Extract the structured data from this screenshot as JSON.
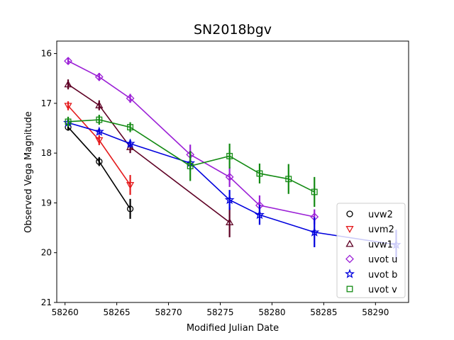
{
  "chart_data": {
    "type": "scatter",
    "title": "SN2018bgv",
    "xlabel": "Modified Julian Date",
    "ylabel": "Observed Vega Magnitude",
    "xlim": [
      58259.2,
      58293.2
    ],
    "ylim": [
      21.0,
      15.75
    ],
    "y_inverted": true,
    "xticks": [
      58260,
      58265,
      58270,
      58275,
      58280,
      58285,
      58290
    ],
    "yticks": [
      16,
      17,
      18,
      19,
      20,
      21
    ],
    "grid": false,
    "legend_position": "lower right",
    "series": [
      {
        "name": "uvw2",
        "color": "#000000",
        "marker": "circle",
        "x": [
          58260.3,
          58263.3,
          58266.3
        ],
        "y": [
          17.48,
          18.17,
          19.12
        ],
        "yerr": [
          0.07,
          0.09,
          0.2
        ]
      },
      {
        "name": "uvm2",
        "color": "#e41a1c",
        "marker": "triangle-down",
        "x": [
          58260.3,
          58263.3,
          58266.3
        ],
        "y": [
          17.05,
          17.74,
          18.64
        ],
        "yerr": [
          0.09,
          0.1,
          0.2
        ]
      },
      {
        "name": "uvw1",
        "color": "#5e0024",
        "marker": "triangle-up",
        "x": [
          58260.3,
          58263.3,
          58266.3,
          58275.9
        ],
        "y": [
          16.62,
          17.04,
          17.88,
          19.39
        ],
        "yerr": [
          0.1,
          0.1,
          0.12,
          0.3
        ]
      },
      {
        "name": "uvot u",
        "color": "#9b1fd6",
        "marker": "diamond",
        "x": [
          58260.3,
          58263.3,
          58266.3,
          58272.1,
          58275.9,
          58278.8,
          58284.1
        ],
        "y": [
          16.15,
          16.47,
          16.9,
          18.03,
          18.48,
          19.05,
          19.28
        ],
        "yerr": [
          0.07,
          0.08,
          0.09,
          0.2,
          0.2,
          0.2,
          0.15
        ]
      },
      {
        "name": "uvot b",
        "color": "#0000dd",
        "marker": "star",
        "x": [
          58260.3,
          58263.3,
          58266.3,
          58272.1,
          58275.9,
          58278.8,
          58284.1,
          58292.0
        ],
        "y": [
          17.39,
          17.57,
          17.81,
          18.2,
          18.94,
          19.24,
          19.59,
          19.84
        ],
        "yerr": [
          0.05,
          0.06,
          0.08,
          0.15,
          0.2,
          0.2,
          0.3,
          0.3
        ]
      },
      {
        "name": "uvot v",
        "color": "#138a13",
        "marker": "square",
        "x": [
          58260.3,
          58263.3,
          58266.3,
          58272.1,
          58275.9,
          58278.8,
          58281.6,
          58284.1
        ],
        "y": [
          17.37,
          17.33,
          17.48,
          18.26,
          18.06,
          18.41,
          18.52,
          18.78
        ],
        "yerr": [
          0.1,
          0.1,
          0.1,
          0.3,
          0.25,
          0.2,
          0.3,
          0.3
        ]
      }
    ]
  }
}
